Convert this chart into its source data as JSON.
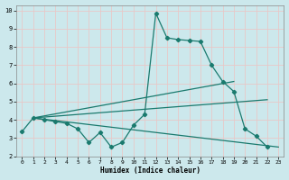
{
  "xlabel": "Humidex (Indice chaleur)",
  "bg_color": "#cce8ec",
  "grid_color": "#e8c8c8",
  "line_color": "#1a7a6e",
  "xlim": [
    -0.5,
    23.5
  ],
  "ylim": [
    2,
    10.3
  ],
  "xticks": [
    0,
    1,
    2,
    3,
    4,
    5,
    6,
    7,
    8,
    9,
    10,
    11,
    12,
    13,
    14,
    15,
    16,
    17,
    18,
    19,
    20,
    21,
    22,
    23
  ],
  "yticks": [
    2,
    3,
    4,
    5,
    6,
    7,
    8,
    9,
    10
  ],
  "main_line": {
    "x": [
      0,
      1,
      2,
      3,
      4,
      5,
      6,
      7,
      8,
      9,
      10,
      11,
      12,
      13,
      14,
      15,
      16,
      17,
      18,
      19,
      20,
      21,
      22
    ],
    "y": [
      3.35,
      4.1,
      4.0,
      3.9,
      3.8,
      3.5,
      2.75,
      3.3,
      2.5,
      2.75,
      3.7,
      4.3,
      9.85,
      8.5,
      8.4,
      8.35,
      8.3,
      7.0,
      6.1,
      5.55,
      3.5,
      3.1,
      2.5
    ]
  },
  "ref_lines": [
    {
      "x": [
        1,
        19
      ],
      "y": [
        4.1,
        6.1
      ]
    },
    {
      "x": [
        1,
        22
      ],
      "y": [
        4.1,
        5.1
      ]
    },
    {
      "x": [
        1,
        23
      ],
      "y": [
        4.1,
        2.5
      ]
    }
  ]
}
